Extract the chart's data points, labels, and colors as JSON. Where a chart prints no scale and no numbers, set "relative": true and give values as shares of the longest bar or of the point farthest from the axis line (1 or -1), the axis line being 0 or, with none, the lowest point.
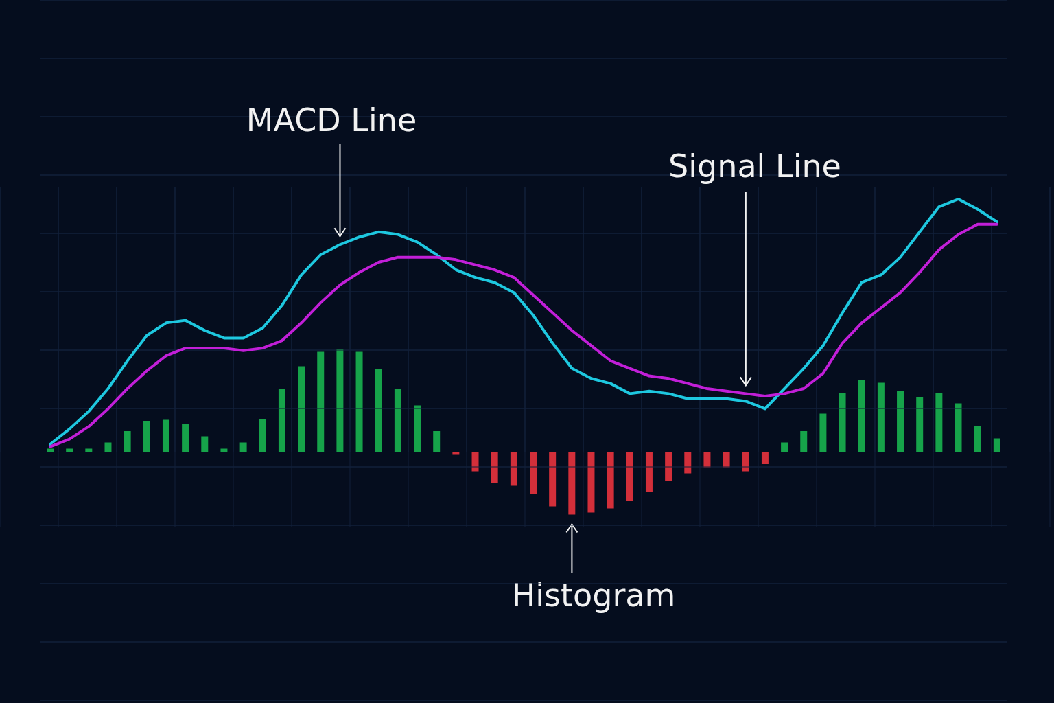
{
  "chart_data": [
    {
      "type": "line",
      "relative": true,
      "grid": true,
      "categories": [
        null,
        null,
        null,
        null,
        null,
        null,
        null,
        null,
        null,
        null,
        null,
        null,
        null,
        null,
        null,
        null,
        null,
        null,
        null,
        null,
        null,
        null,
        null,
        null,
        null,
        null,
        null,
        null,
        null,
        null,
        null,
        null,
        null,
        null,
        null,
        null,
        null,
        null,
        null,
        null,
        null,
        null,
        null,
        null,
        null,
        null,
        null,
        null,
        null,
        null
      ],
      "series": [
        {
          "name": "MACD Line",
          "color": "#1ec8e0",
          "values": [
            0.03,
            0.09,
            0.16,
            0.25,
            0.36,
            0.46,
            0.51,
            0.52,
            0.48,
            0.45,
            0.45,
            0.49,
            0.58,
            0.7,
            0.78,
            0.82,
            0.85,
            0.87,
            0.86,
            0.83,
            0.78,
            0.72,
            0.69,
            0.67,
            0.63,
            0.54,
            0.43,
            0.33,
            0.29,
            0.27,
            0.23,
            0.24,
            0.23,
            0.21,
            0.21,
            0.21,
            0.2,
            0.17,
            0.25,
            0.33,
            0.42,
            0.55,
            0.67,
            0.7,
            0.77,
            0.87,
            0.97,
            1,
            0.96,
            0.91
          ]
        },
        {
          "name": "Signal Line",
          "color": "#c21fd8",
          "values": [
            0.02,
            0.05,
            0.1,
            0.17,
            0.25,
            0.32,
            0.38,
            0.41,
            0.41,
            0.41,
            0.4,
            0.41,
            0.44,
            0.51,
            0.59,
            0.66,
            0.71,
            0.75,
            0.77,
            0.77,
            0.77,
            0.76,
            0.74,
            0.72,
            0.69,
            0.62,
            0.55,
            0.48,
            0.42,
            0.36,
            0.33,
            0.3,
            0.29,
            0.27,
            0.25,
            0.24,
            0.23,
            0.22,
            0.23,
            0.25,
            0.31,
            0.43,
            0.51,
            0.57,
            0.63,
            0.71,
            0.8,
            0.86,
            0.9,
            0.9
          ]
        }
      ]
    },
    {
      "type": "bar",
      "relative": true,
      "grid": true,
      "categories": [
        null,
        null,
        null,
        null,
        null,
        null,
        null,
        null,
        null,
        null,
        null,
        null,
        null,
        null,
        null,
        null,
        null,
        null,
        null,
        null,
        null,
        null,
        null,
        null,
        null,
        null,
        null,
        null,
        null,
        null,
        null,
        null,
        null,
        null,
        null,
        null,
        null,
        null,
        null,
        null,
        null,
        null,
        null,
        null,
        null,
        null,
        null,
        null,
        null,
        null
      ],
      "series": [
        {
          "name": "Histogram",
          "values": [
            0.03,
            0.03,
            0.03,
            0.09,
            0.2,
            0.3,
            0.31,
            0.27,
            0.15,
            0.03,
            0.09,
            0.32,
            0.61,
            0.83,
            0.97,
            1,
            0.97,
            0.8,
            0.61,
            0.45,
            0.2,
            -0.03,
            -0.19,
            -0.3,
            -0.33,
            -0.41,
            -0.53,
            -0.61,
            -0.59,
            -0.55,
            -0.48,
            -0.39,
            -0.28,
            -0.21,
            -0.15,
            -0.15,
            -0.19,
            -0.12,
            0.09,
            0.2,
            0.37,
            0.57,
            0.7,
            0.67,
            0.59,
            0.53,
            0.57,
            0.47,
            0.25,
            0.13
          ],
          "colors": [
            "#16a34a",
            "#16a34a",
            "#16a34a",
            "#16a34a",
            "#16a34a",
            "#16a34a",
            "#16a34a",
            "#16a34a",
            "#16a34a",
            "#16a34a",
            "#16a34a",
            "#16a34a",
            "#16a34a",
            "#16a34a",
            "#16a34a",
            "#16a34a",
            "#16a34a",
            "#16a34a",
            "#16a34a",
            "#16a34a",
            "#16a34a",
            "#d32f3a",
            "#d32f3a",
            "#d32f3a",
            "#d32f3a",
            "#d32f3a",
            "#d32f3a",
            "#d32f3a",
            "#d32f3a",
            "#d32f3a",
            "#d32f3a",
            "#d32f3a",
            "#d32f3a",
            "#d32f3a",
            "#d32f3a",
            "#d32f3a",
            "#d32f3a",
            "#d32f3a",
            "#16a34a",
            "#16a34a",
            "#16a34a",
            "#16a34a",
            "#16a34a",
            "#16a34a",
            "#16a34a",
            "#16a34a",
            "#16a34a",
            "#16a34a",
            "#16a34a",
            "#16a34a"
          ]
        }
      ]
    }
  ]
}
